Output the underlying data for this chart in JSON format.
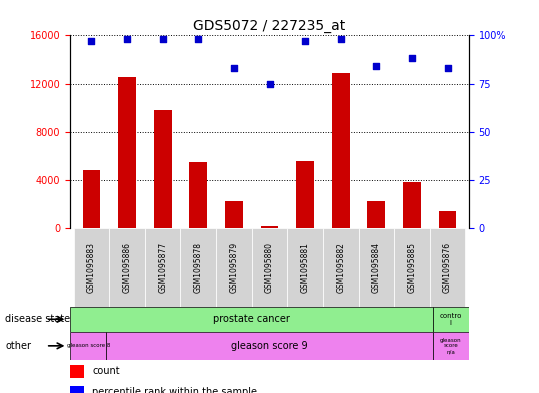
{
  "title": "GDS5072 / 227235_at",
  "samples": [
    "GSM1095883",
    "GSM1095886",
    "GSM1095877",
    "GSM1095878",
    "GSM1095879",
    "GSM1095880",
    "GSM1095881",
    "GSM1095882",
    "GSM1095884",
    "GSM1095885",
    "GSM1095876"
  ],
  "counts": [
    4800,
    12500,
    9800,
    5500,
    2200,
    200,
    5600,
    12900,
    2200,
    3800,
    1400
  ],
  "percentiles": [
    97,
    98,
    98,
    98,
    83,
    75,
    97,
    98,
    84,
    88,
    83
  ],
  "ylim_left": [
    0,
    16000
  ],
  "ylim_right": [
    0,
    100
  ],
  "yticks_left": [
    0,
    4000,
    8000,
    12000,
    16000
  ],
  "yticks_right": [
    0,
    25,
    50,
    75,
    100
  ],
  "bar_color": "#cc0000",
  "dot_color": "#0000cc",
  "disease_label": "disease state",
  "other_label": "other",
  "legend_count_label": "count",
  "legend_percentile_label": "percentile rank within the sample",
  "background_color": "#ffffff",
  "tick_area_color": "#d3d3d3",
  "prostate_color": "#90ee90",
  "gleason_color": "#ee82ee"
}
